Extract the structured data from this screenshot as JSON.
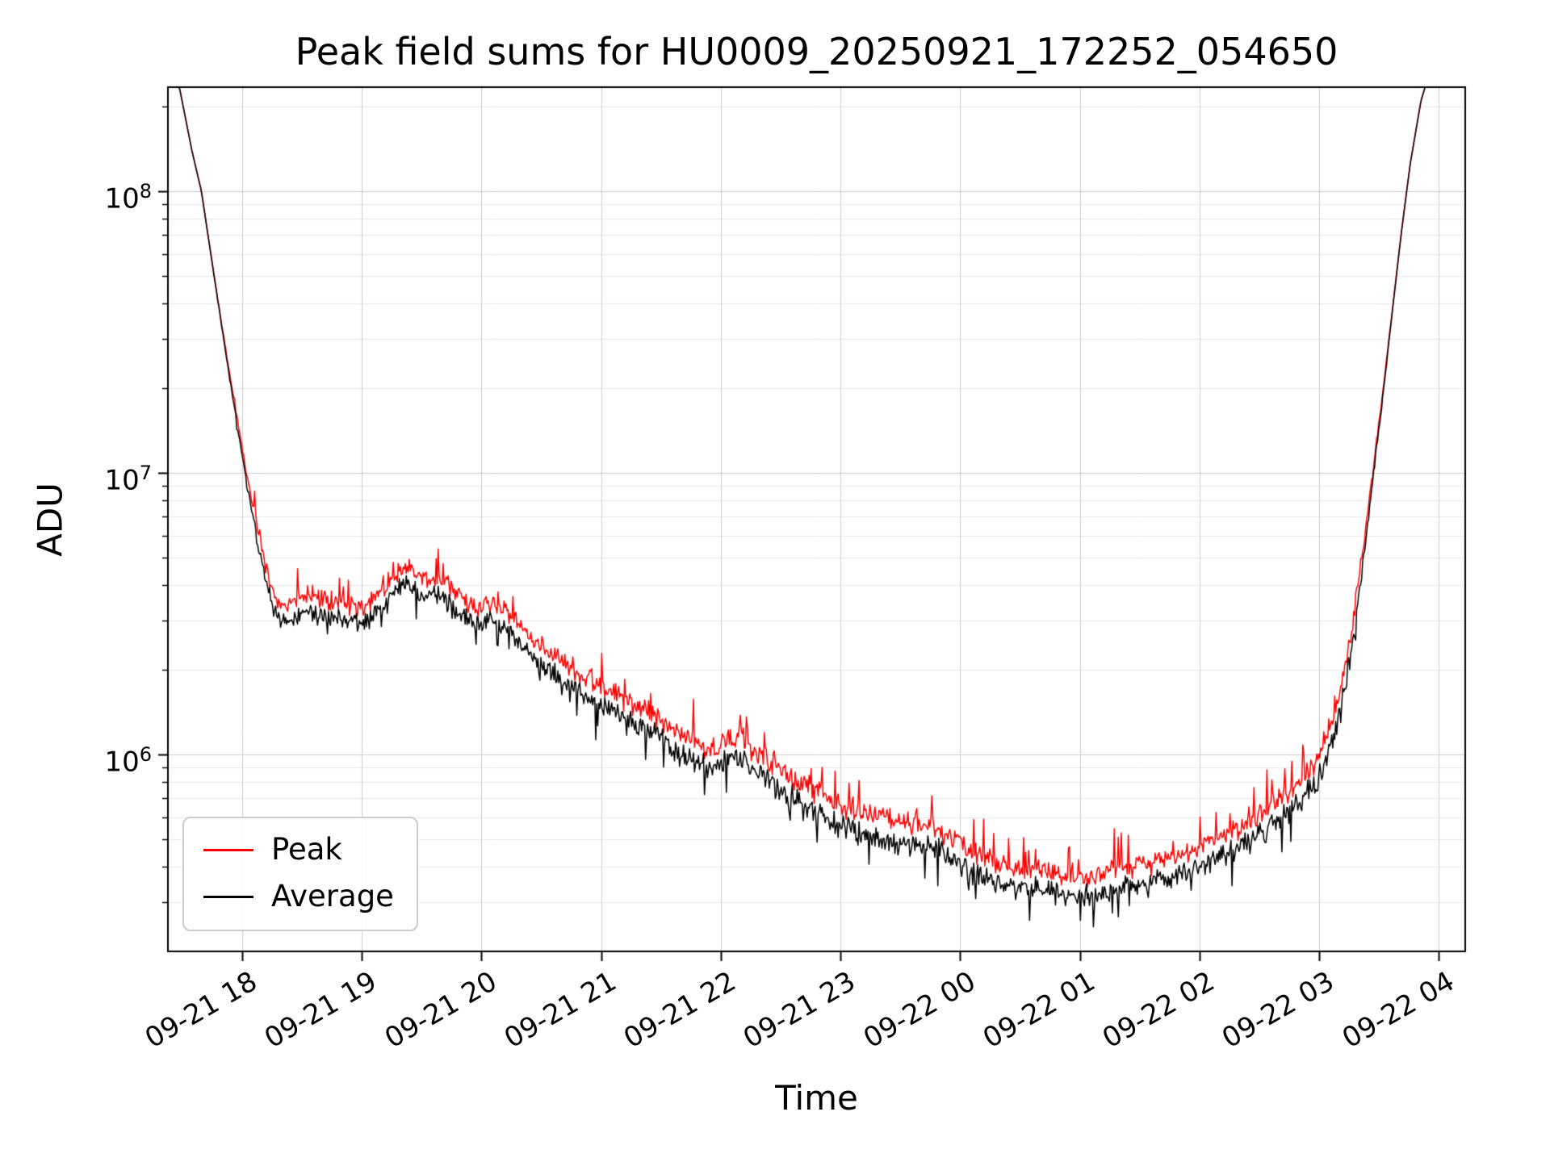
{
  "chart_data": {
    "type": "line",
    "title": "Peak field sums for HU0009_20250921_172252_054650",
    "xlabel": "Time",
    "ylabel": "ADU",
    "yscale": "log",
    "grid": true,
    "ylim": [
      200000.0,
      235000000.0
    ],
    "xlim_hours": [
      17.38,
      28.22
    ],
    "x_ticks": [
      {
        "hour": 18,
        "label": "09-21 18"
      },
      {
        "hour": 19,
        "label": "09-21 19"
      },
      {
        "hour": 20,
        "label": "09-21 20"
      },
      {
        "hour": 21,
        "label": "09-21 21"
      },
      {
        "hour": 22,
        "label": "09-21 22"
      },
      {
        "hour": 23,
        "label": "09-21 23"
      },
      {
        "hour": 24,
        "label": "09-22 00"
      },
      {
        "hour": 25,
        "label": "09-22 01"
      },
      {
        "hour": 26,
        "label": "09-22 02"
      },
      {
        "hour": 27,
        "label": "09-22 03"
      },
      {
        "hour": 28,
        "label": "09-22 04"
      }
    ],
    "y_ticks": [
      {
        "value": 1000000.0,
        "label": "10^6"
      },
      {
        "value": 10000000.0,
        "label": "10^7"
      },
      {
        "value": 100000000.0,
        "label": "10^8"
      }
    ],
    "legend": {
      "position": "lower left",
      "entries": [
        "Peak",
        "Average"
      ]
    },
    "series": [
      {
        "name": "Peak",
        "color": "#ff0000"
      },
      {
        "name": "Average",
        "color": "#000000"
      }
    ],
    "average_keyframes": [
      [
        17.38,
        300000000.0
      ],
      [
        17.48,
        230000000.0
      ],
      [
        17.58,
        140000000.0
      ],
      [
        17.66,
        100000000.0
      ],
      [
        17.76,
        52000000.0
      ],
      [
        17.88,
        24000000.0
      ],
      [
        17.98,
        13000000.0
      ],
      [
        18.05,
        8600000.0
      ],
      [
        18.12,
        6000000.0
      ],
      [
        18.19,
        4300000.0
      ],
      [
        18.26,
        3300000.0
      ],
      [
        18.33,
        2950000.0
      ],
      [
        18.42,
        3050000.0
      ],
      [
        18.52,
        3250000.0
      ],
      [
        18.62,
        3150000.0
      ],
      [
        18.72,
        3000000.0
      ],
      [
        18.82,
        3100000.0
      ],
      [
        18.92,
        2950000.0
      ],
      [
        19.02,
        2900000.0
      ],
      [
        19.12,
        3200000.0
      ],
      [
        19.22,
        3600000.0
      ],
      [
        19.32,
        3950000.0
      ],
      [
        19.4,
        4050000.0
      ],
      [
        19.5,
        3700000.0
      ],
      [
        19.6,
        3750000.0
      ],
      [
        19.7,
        3550000.0
      ],
      [
        19.8,
        3200000.0
      ],
      [
        19.9,
        2950000.0
      ],
      [
        20.0,
        2900000.0
      ],
      [
        20.1,
        3000000.0
      ],
      [
        20.2,
        2850000.0
      ],
      [
        20.32,
        2500000.0
      ],
      [
        20.45,
        2150000.0
      ],
      [
        20.6,
        1950000.0
      ],
      [
        20.8,
        1700000.0
      ],
      [
        21.0,
        1500000.0
      ],
      [
        21.2,
        1350000.0
      ],
      [
        21.4,
        1200000.0
      ],
      [
        21.6,
        1050000.0
      ],
      [
        21.8,
        950000.0
      ],
      [
        21.95,
        880000.0
      ],
      [
        22.05,
        970000.0
      ],
      [
        22.15,
        1000000.0
      ],
      [
        22.25,
        900000.0
      ],
      [
        22.4,
        800000.0
      ],
      [
        22.6,
        700000.0
      ],
      [
        22.8,
        620000.0
      ],
      [
        23.0,
        560000.0
      ],
      [
        23.2,
        520000.0
      ],
      [
        23.4,
        500000.0
      ],
      [
        23.6,
        480000.0
      ],
      [
        23.8,
        460000.0
      ],
      [
        23.95,
        430000.0
      ],
      [
        24.1,
        380000.0
      ],
      [
        24.3,
        350000.0
      ],
      [
        24.5,
        335000.0
      ],
      [
        24.7,
        330000.0
      ],
      [
        24.9,
        315000.0
      ],
      [
        25.05,
        310000.0
      ],
      [
        25.2,
        325000.0
      ],
      [
        25.4,
        340000.0
      ],
      [
        25.6,
        350000.0
      ],
      [
        25.8,
        370000.0
      ],
      [
        26.0,
        400000.0
      ],
      [
        26.2,
        440000.0
      ],
      [
        26.4,
        490000.0
      ],
      [
        26.6,
        560000.0
      ],
      [
        26.8,
        650000.0
      ],
      [
        26.95,
        770000.0
      ],
      [
        27.05,
        950000.0
      ],
      [
        27.13,
        1200000.0
      ],
      [
        27.22,
        1750000.0
      ],
      [
        27.3,
        2900000.0
      ],
      [
        27.37,
        5000000.0
      ],
      [
        27.44,
        8800000.0
      ],
      [
        27.52,
        17000000.0
      ],
      [
        27.6,
        34000000.0
      ],
      [
        27.68,
        68000000.0
      ],
      [
        27.76,
        125000000.0
      ],
      [
        27.85,
        210000000.0
      ],
      [
        27.95,
        290000000.0
      ],
      [
        28.22,
        340000000.0
      ]
    ],
    "noise": {
      "seed": 20250921,
      "sigma": 0.12,
      "peak_ratio": 1.18,
      "peak_spike_prob": 0.08,
      "peak_spike_mag": 0.3,
      "avg_spike_prob": 0.06,
      "avg_spike_mag": 0.3,
      "damp_ref": 8000000.0,
      "damp_pow": 1.5
    },
    "sample_step_hours": 0.008333,
    "colors": {
      "grid_major": "#cccccc",
      "grid_minor": "#e8e8e8",
      "spine": "#000000",
      "background": "#ffffff"
    }
  }
}
